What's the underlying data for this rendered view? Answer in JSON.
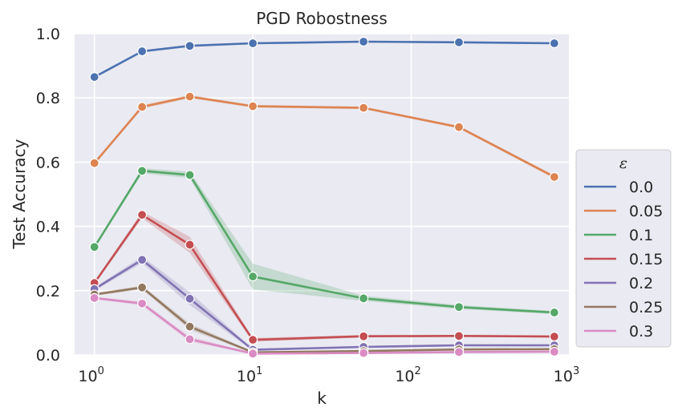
{
  "chart_data": {
    "type": "line",
    "title": "PGD Robostness",
    "xlabel": "k",
    "ylabel": "Test Accuracy",
    "xscale": "log",
    "xlim": [
      0.75,
      1000
    ],
    "ylim": [
      0,
      1
    ],
    "x": [
      1,
      2,
      4,
      10,
      50,
      200,
      800
    ],
    "yticks": [
      "0.0",
      "0.2",
      "0.4",
      "0.6",
      "0.8",
      "1.0"
    ],
    "xticks": [
      {
        "base": "10",
        "exp": "0"
      },
      {
        "base": "10",
        "exp": "1"
      },
      {
        "base": "10",
        "exp": "2"
      },
      {
        "base": "10",
        "exp": "3"
      }
    ],
    "grid": true,
    "legend": {
      "title": "ε",
      "placement": "right"
    },
    "series": [
      {
        "name": "0.0",
        "color": "#4c72b0",
        "values": [
          0.865,
          0.945,
          0.962,
          0.97,
          0.975,
          0.973,
          0.97
        ],
        "band": [
          0.003,
          0.003,
          0.003,
          0.003,
          0.003,
          0.003,
          0.003
        ]
      },
      {
        "name": "0.05",
        "color": "#dd8452",
        "values": [
          0.597,
          0.772,
          0.804,
          0.774,
          0.769,
          0.709,
          0.554
        ],
        "band": [
          0.004,
          0.006,
          0.005,
          0.004,
          0.004,
          0.004,
          0.005
        ]
      },
      {
        "name": "0.1",
        "color": "#55a868",
        "values": [
          0.336,
          0.573,
          0.56,
          0.244,
          0.176,
          0.149,
          0.132
        ],
        "band": [
          0.005,
          0.008,
          0.01,
          0.04,
          0.008,
          0.006,
          0.005
        ]
      },
      {
        "name": "0.15",
        "color": "#c44e52",
        "values": [
          0.224,
          0.436,
          0.343,
          0.047,
          0.058,
          0.059,
          0.057
        ],
        "band": [
          0.005,
          0.01,
          0.025,
          0.006,
          0.004,
          0.003,
          0.003
        ]
      },
      {
        "name": "0.2",
        "color": "#8172b3",
        "values": [
          0.205,
          0.296,
          0.175,
          0.016,
          0.025,
          0.03,
          0.03
        ],
        "band": [
          0.005,
          0.01,
          0.02,
          0.003,
          0.003,
          0.003,
          0.003
        ]
      },
      {
        "name": "0.25",
        "color": "#937860",
        "values": [
          0.188,
          0.21,
          0.088,
          0.008,
          0.012,
          0.017,
          0.018
        ],
        "band": [
          0.004,
          0.006,
          0.01,
          0.002,
          0.002,
          0.002,
          0.002
        ]
      },
      {
        "name": "0.3",
        "color": "#da8bc3",
        "values": [
          0.177,
          0.16,
          0.049,
          0.004,
          0.006,
          0.009,
          0.01
        ],
        "band": [
          0.004,
          0.006,
          0.008,
          0.002,
          0.002,
          0.002,
          0.002
        ]
      }
    ]
  }
}
